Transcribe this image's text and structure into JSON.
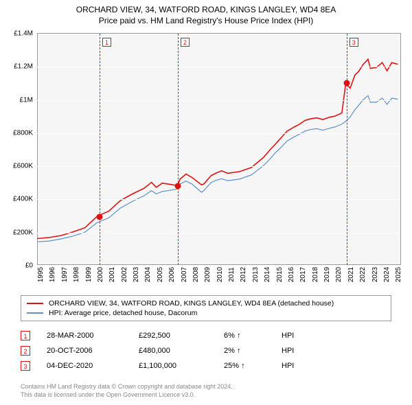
{
  "title": {
    "line1": "ORCHARD VIEW, 34, WATFORD ROAD, KINGS LANGLEY, WD4 8EA",
    "line2": "Price paid vs. HM Land Registry's House Price Index (HPI)",
    "fontsize": 12,
    "color": "#000000"
  },
  "chart": {
    "type": "line",
    "background_color": "#f6f6f6",
    "grid_color": "#ffffff",
    "axis_color": "#999999",
    "x": {
      "min": 1995,
      "max": 2025.5,
      "ticks": [
        1995,
        1996,
        1997,
        1998,
        1999,
        2000,
        2001,
        2002,
        2003,
        2004,
        2005,
        2006,
        2007,
        2008,
        2009,
        2010,
        2011,
        2012,
        2013,
        2014,
        2015,
        2016,
        2017,
        2018,
        2019,
        2020,
        2021,
        2022,
        2023,
        2024,
        2025
      ]
    },
    "y": {
      "min": 0,
      "max": 1400000,
      "ticks": [
        {
          "v": 0,
          "label": "£0"
        },
        {
          "v": 200000,
          "label": "£200K"
        },
        {
          "v": 400000,
          "label": "£400K"
        },
        {
          "v": 600000,
          "label": "£600K"
        },
        {
          "v": 800000,
          "label": "£800K"
        },
        {
          "v": 1000000,
          "label": "£1M"
        },
        {
          "v": 1200000,
          "label": "£1.2M"
        },
        {
          "v": 1400000,
          "label": "£1.4M"
        }
      ],
      "tick_fontsize": 10
    },
    "series": [
      {
        "name": "price_paid",
        "label": "ORCHARD VIEW, 34, WATFORD ROAD, KINGS LANGLEY, WD4 8EA (detached house)",
        "color": "#e01010",
        "line_width": 1.6,
        "points": [
          [
            1995,
            160000
          ],
          [
            1996,
            166000
          ],
          [
            1997,
            178000
          ],
          [
            1998,
            200000
          ],
          [
            1999,
            225000
          ],
          [
            2000,
            292500
          ],
          [
            2000.5,
            310000
          ],
          [
            2001,
            325000
          ],
          [
            2002,
            390000
          ],
          [
            2003,
            430000
          ],
          [
            2004,
            465000
          ],
          [
            2004.6,
            500000
          ],
          [
            2005,
            470000
          ],
          [
            2005.5,
            495000
          ],
          [
            2006,
            490000
          ],
          [
            2006.8,
            480000
          ],
          [
            2007,
            520000
          ],
          [
            2007.5,
            550000
          ],
          [
            2008,
            530000
          ],
          [
            2008.8,
            485000
          ],
          [
            2009,
            490000
          ],
          [
            2009.6,
            540000
          ],
          [
            2010,
            555000
          ],
          [
            2010.5,
            570000
          ],
          [
            2011,
            555000
          ],
          [
            2012,
            565000
          ],
          [
            2013,
            590000
          ],
          [
            2014,
            650000
          ],
          [
            2014.6,
            700000
          ],
          [
            2015,
            730000
          ],
          [
            2015.5,
            770000
          ],
          [
            2016,
            810000
          ],
          [
            2016.6,
            835000
          ],
          [
            2017,
            850000
          ],
          [
            2017.5,
            875000
          ],
          [
            2018,
            885000
          ],
          [
            2018.5,
            890000
          ],
          [
            2019,
            880000
          ],
          [
            2019.6,
            895000
          ],
          [
            2020,
            900000
          ],
          [
            2020.6,
            920000
          ],
          [
            2020.93,
            1100000
          ],
          [
            2021.3,
            1070000
          ],
          [
            2021.7,
            1150000
          ],
          [
            2022,
            1170000
          ],
          [
            2022.4,
            1215000
          ],
          [
            2022.8,
            1245000
          ],
          [
            2023,
            1190000
          ],
          [
            2023.5,
            1195000
          ],
          [
            2024,
            1225000
          ],
          [
            2024.4,
            1175000
          ],
          [
            2024.8,
            1225000
          ],
          [
            2025.3,
            1215000
          ]
        ]
      },
      {
        "name": "hpi",
        "label": "HPI: Average price, detached house, Dacorum",
        "color": "#5b8fc7",
        "line_width": 1.2,
        "points": [
          [
            1995,
            140000
          ],
          [
            1996,
            145000
          ],
          [
            1997,
            158000
          ],
          [
            1998,
            175000
          ],
          [
            1999,
            198000
          ],
          [
            2000,
            255000
          ],
          [
            2001,
            285000
          ],
          [
            2002,
            345000
          ],
          [
            2003,
            385000
          ],
          [
            2004,
            420000
          ],
          [
            2004.6,
            450000
          ],
          [
            2005,
            430000
          ],
          [
            2005.5,
            445000
          ],
          [
            2006,
            450000
          ],
          [
            2006.8,
            460000
          ],
          [
            2007,
            490000
          ],
          [
            2007.5,
            508000
          ],
          [
            2008,
            490000
          ],
          [
            2008.8,
            440000
          ],
          [
            2009,
            450000
          ],
          [
            2009.6,
            498000
          ],
          [
            2010,
            512000
          ],
          [
            2010.5,
            522000
          ],
          [
            2011,
            510000
          ],
          [
            2012,
            520000
          ],
          [
            2013,
            545000
          ],
          [
            2014,
            600000
          ],
          [
            2014.6,
            645000
          ],
          [
            2015,
            678000
          ],
          [
            2015.5,
            712000
          ],
          [
            2016,
            750000
          ],
          [
            2016.6,
            775000
          ],
          [
            2017,
            790000
          ],
          [
            2017.5,
            810000
          ],
          [
            2018,
            820000
          ],
          [
            2018.5,
            825000
          ],
          [
            2019,
            815000
          ],
          [
            2019.6,
            828000
          ],
          [
            2020,
            835000
          ],
          [
            2020.6,
            852000
          ],
          [
            2020.93,
            870000
          ],
          [
            2021.3,
            895000
          ],
          [
            2021.7,
            940000
          ],
          [
            2022,
            965000
          ],
          [
            2022.4,
            1000000
          ],
          [
            2022.8,
            1025000
          ],
          [
            2023,
            985000
          ],
          [
            2023.5,
            985000
          ],
          [
            2024,
            1010000
          ],
          [
            2024.4,
            972000
          ],
          [
            2024.8,
            1010000
          ],
          [
            2025.3,
            1003000
          ]
        ]
      }
    ],
    "sale_markers": [
      {
        "n": "1",
        "x": 2000.24,
        "y": 292500
      },
      {
        "n": "2",
        "x": 2006.8,
        "y": 480000
      },
      {
        "n": "3",
        "x": 2020.93,
        "y": 1100000
      }
    ]
  },
  "legend": {
    "border_color": "#999999",
    "items": [
      {
        "color": "#e01010",
        "label": "ORCHARD VIEW, 34, WATFORD ROAD, KINGS LANGLEY, WD4 8EA (detached house)"
      },
      {
        "color": "#5b8fc7",
        "label": "HPI: Average price, detached house, Dacorum"
      }
    ]
  },
  "sales": [
    {
      "n": "1",
      "date": "28-MAR-2000",
      "price": "£292,500",
      "delta": "6%",
      "arrow": "↑",
      "vs": "HPI"
    },
    {
      "n": "2",
      "date": "20-OCT-2006",
      "price": "£480,000",
      "delta": "2%",
      "arrow": "↑",
      "vs": "HPI"
    },
    {
      "n": "3",
      "date": "04-DEC-2020",
      "price": "£1,100,000",
      "delta": "25%",
      "arrow": "↑",
      "vs": "HPI"
    }
  ],
  "attribution": {
    "line1": "Contains HM Land Registry data © Crown copyright and database right 2024.",
    "line2": "This data is licensed under the Open Government Licence v3.0."
  }
}
